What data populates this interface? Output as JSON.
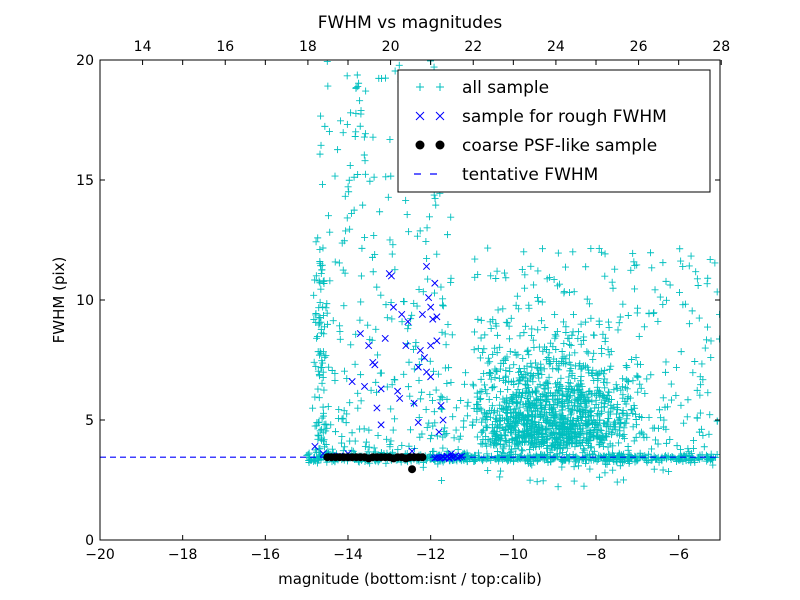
{
  "chart_data": {
    "type": "scatter",
    "title": "FWHM vs magnitudes",
    "xlabel": "magnitude (bottom:isnt / top:calib)",
    "ylabel": "FWHM (pix)",
    "xlim": [
      -20,
      -5
    ],
    "ylim": [
      0,
      20
    ],
    "x_ticks": [
      "−20",
      "−18",
      "−16",
      "−14",
      "−12",
      "−10",
      "−8",
      "−6"
    ],
    "y_ticks": [
      "0",
      "5",
      "10",
      "15",
      "20"
    ],
    "top_axis": {
      "offset": 32.97,
      "ticks": [
        "14",
        "16",
        "18",
        "20",
        "22",
        "24",
        "26",
        "28"
      ]
    },
    "grid": false,
    "legend_position": "top-right",
    "colors": {
      "all_sample": "#00bfbf",
      "rough_sample": "#0000ff",
      "psf_sample": "#000000",
      "tentative": "#0000ff"
    },
    "series": [
      {
        "name": "all sample",
        "marker": "plus",
        "description": "~2000 points; bright branch at x≈-14.6 to -11.5 spanning FWHM 3.5–20; dense cloud centred near x≈-9, y≈5; stellar locus along y≈3.3–3.6 from x≈-15 to -5",
        "values": []
      },
      {
        "name": "sample for rough FWHM",
        "marker": "x",
        "values": [
          [
            -14.8,
            3.9
          ],
          [
            -14.6,
            3.6
          ],
          [
            -14.4,
            3.5
          ],
          [
            -14.2,
            3.5
          ],
          [
            -14.0,
            3.6
          ],
          [
            -13.9,
            6.6
          ],
          [
            -13.7,
            8.6
          ],
          [
            -13.6,
            6.4
          ],
          [
            -13.5,
            8.1
          ],
          [
            -13.4,
            7.4
          ],
          [
            -13.35,
            7.3
          ],
          [
            -13.3,
            5.5
          ],
          [
            -13.2,
            6.3
          ],
          [
            -13.2,
            4.8
          ],
          [
            -13.1,
            8.4
          ],
          [
            -13.0,
            11.1
          ],
          [
            -12.95,
            11.0
          ],
          [
            -12.9,
            9.7
          ],
          [
            -12.8,
            6.2
          ],
          [
            -12.75,
            5.9
          ],
          [
            -12.7,
            9.4
          ],
          [
            -12.6,
            8.1
          ],
          [
            -12.55,
            9.1
          ],
          [
            -12.45,
            3.7
          ],
          [
            -12.4,
            5.7
          ],
          [
            -12.3,
            7.2
          ],
          [
            -12.3,
            4.9
          ],
          [
            -12.25,
            7.9
          ],
          [
            -12.2,
            9.4
          ],
          [
            -12.15,
            7.6
          ],
          [
            -12.1,
            11.4
          ],
          [
            -12.1,
            7.0
          ],
          [
            -12.05,
            10.1
          ],
          [
            -12.0,
            9.7
          ],
          [
            -12.0,
            8.1
          ],
          [
            -12.0,
            6.8
          ],
          [
            -11.95,
            9.2
          ],
          [
            -11.9,
            10.7
          ],
          [
            -11.85,
            9.3
          ],
          [
            -11.85,
            8.3
          ],
          [
            -11.8,
            4.5
          ],
          [
            -11.75,
            5.6
          ],
          [
            -11.7,
            5.0
          ],
          [
            -11.6,
            3.5
          ],
          [
            -11.55,
            3.4
          ],
          [
            -11.5,
            3.6
          ]
        ]
      },
      {
        "name": "coarse PSF-like sample",
        "marker": "dot",
        "values": [
          [
            -14.5,
            3.45
          ],
          [
            -14.4,
            3.45
          ],
          [
            -14.3,
            3.45
          ],
          [
            -14.2,
            3.45
          ],
          [
            -14.1,
            3.45
          ],
          [
            -14.0,
            3.45
          ],
          [
            -13.9,
            3.45
          ],
          [
            -13.8,
            3.45
          ],
          [
            -13.7,
            3.45
          ],
          [
            -13.6,
            3.45
          ],
          [
            -13.5,
            3.4
          ],
          [
            -13.4,
            3.45
          ],
          [
            -13.3,
            3.45
          ],
          [
            -13.2,
            3.45
          ],
          [
            -13.1,
            3.45
          ],
          [
            -13.0,
            3.45
          ],
          [
            -12.9,
            3.4
          ],
          [
            -12.8,
            3.45
          ],
          [
            -12.7,
            3.45
          ],
          [
            -12.6,
            3.4
          ],
          [
            -12.5,
            3.45
          ],
          [
            -12.4,
            3.45
          ],
          [
            -12.3,
            3.45
          ],
          [
            -12.2,
            3.45
          ],
          [
            -12.45,
            2.95
          ]
        ]
      },
      {
        "name": "tentative FWHM",
        "marker": "dashed-line",
        "values": [
          3.45
        ]
      }
    ]
  }
}
